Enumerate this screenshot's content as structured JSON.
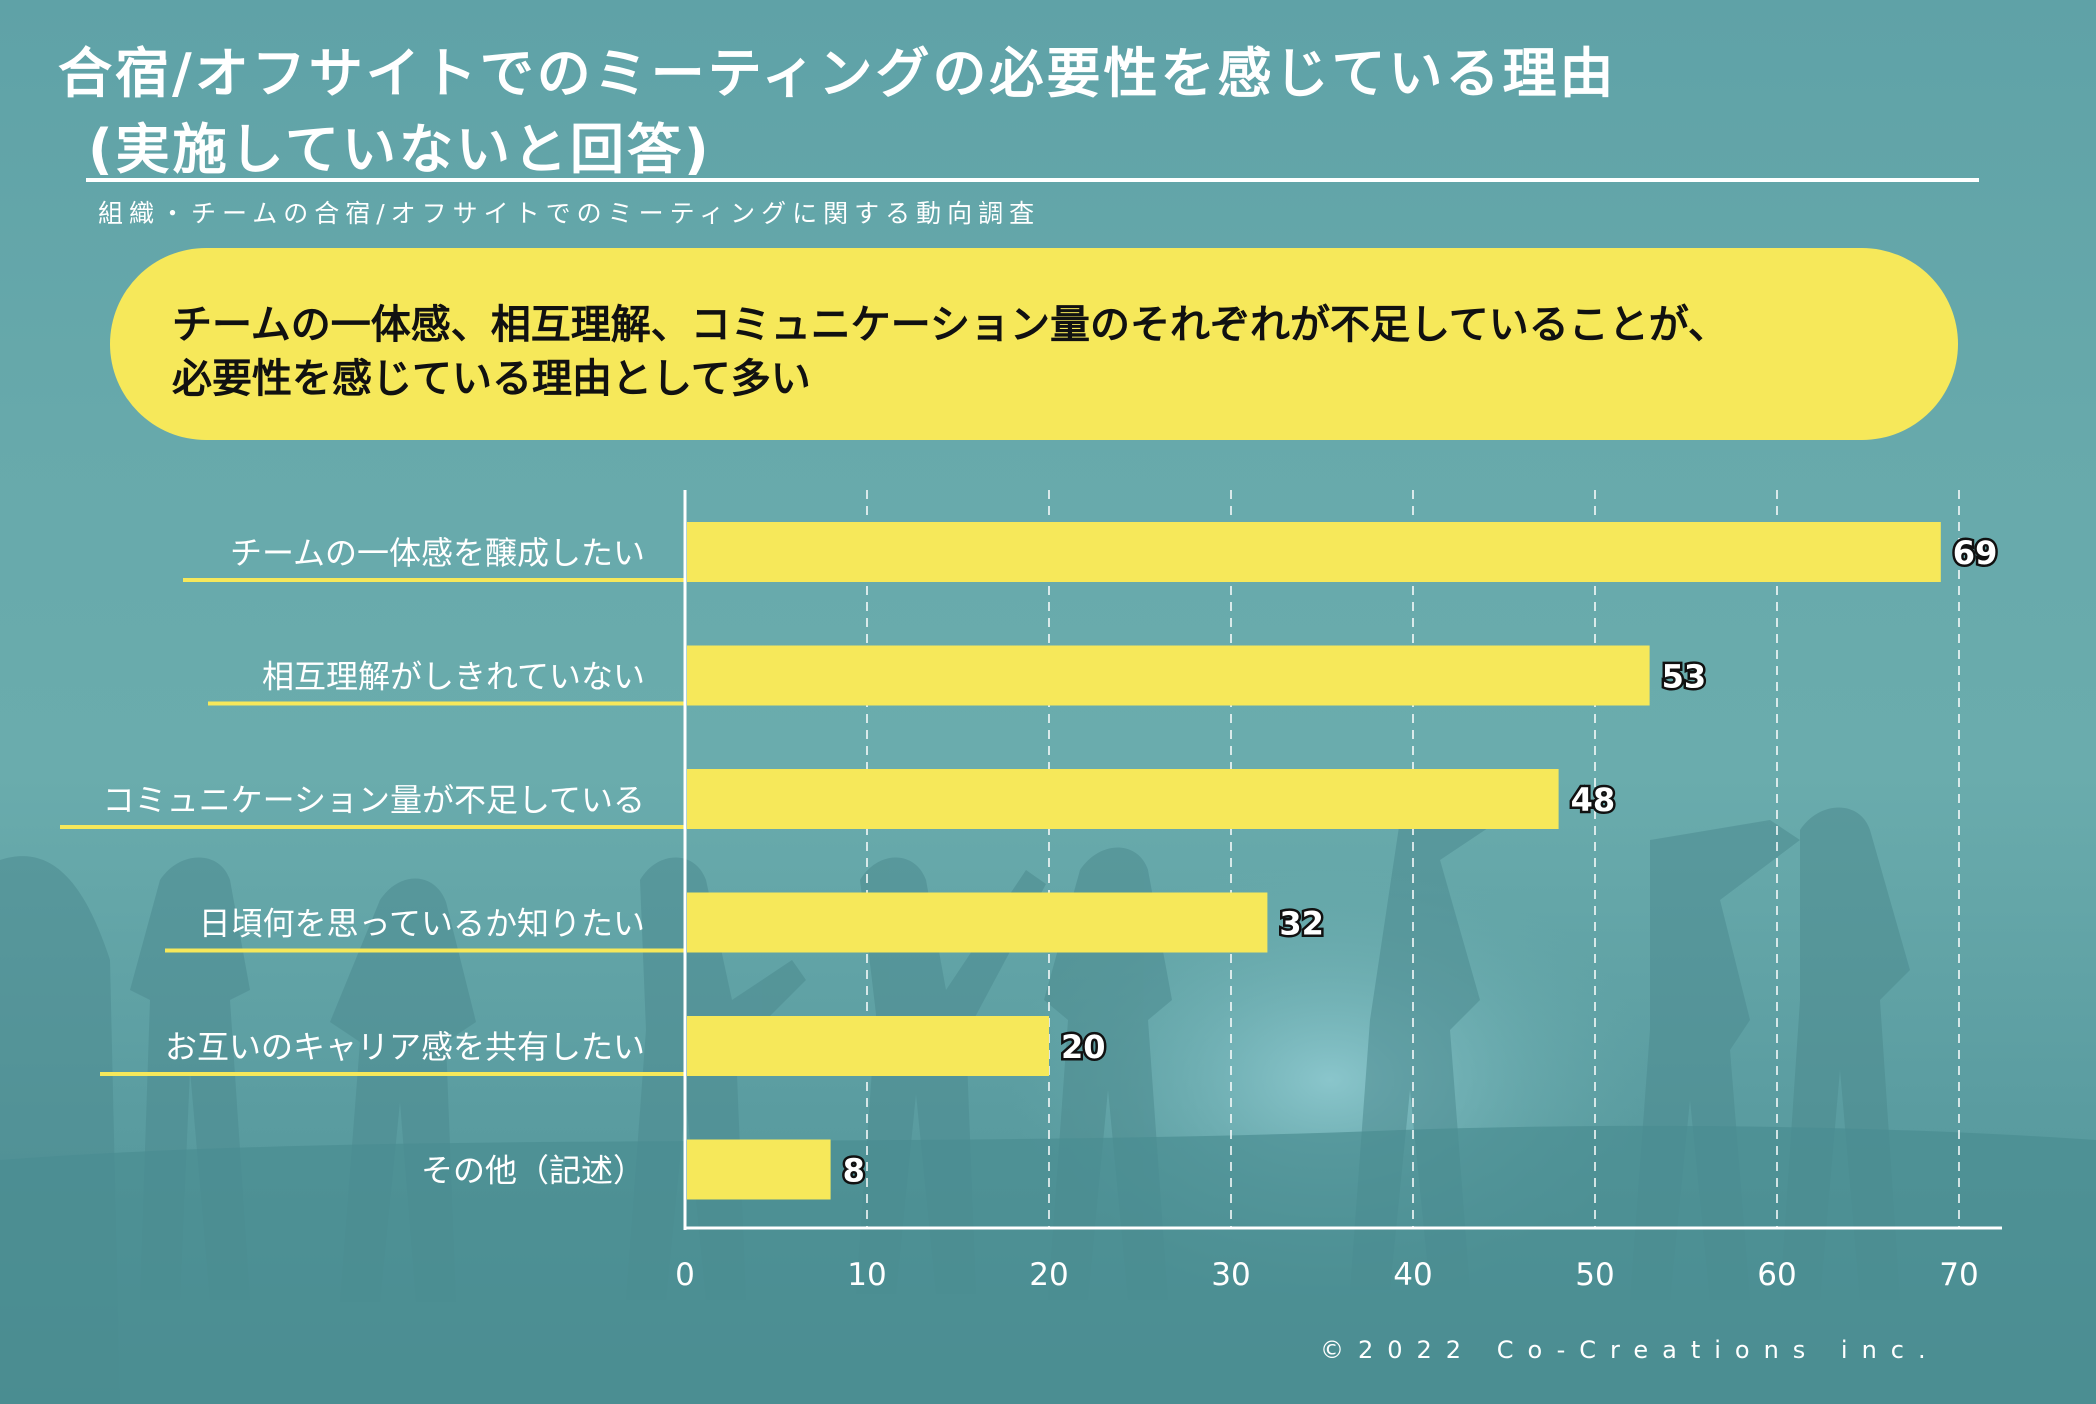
{
  "header": {
    "title_line1": "合宿/オフサイトでのミーティングの必要性を感じている理由",
    "title_line2": "(実施していないと回答)",
    "subtitle": "組織・チームの合宿/オフサイトでのミーティングに関する動向調査"
  },
  "callout": {
    "text_line1": "チームの一体感、相互理解、コミュニケーション量のそれぞれが不足していることが、",
    "text_line2": "必要性を感じている理由として多い"
  },
  "colors": {
    "bar": "#f6e85a",
    "background": "#62a4a8",
    "text": "#ffffff"
  },
  "footer": {
    "copyright": "©2022 Co-Creations inc."
  },
  "chart_data": {
    "type": "bar",
    "orientation": "horizontal",
    "categories": [
      "チームの一体感を醸成したい",
      "相互理解がしきれていない",
      "コミュニケーション量が不足している",
      "日頃何を思っているか知りたい",
      "お互いのキャリア感を共有したい",
      "その他（記述）"
    ],
    "values": [
      69,
      53,
      48,
      32,
      20,
      8
    ],
    "xlim": [
      0,
      70
    ],
    "xticks": [
      0,
      10,
      20,
      30,
      40,
      50,
      60,
      70
    ],
    "grid": "vertical dashed",
    "title": "",
    "xlabel": "",
    "ylabel": ""
  }
}
